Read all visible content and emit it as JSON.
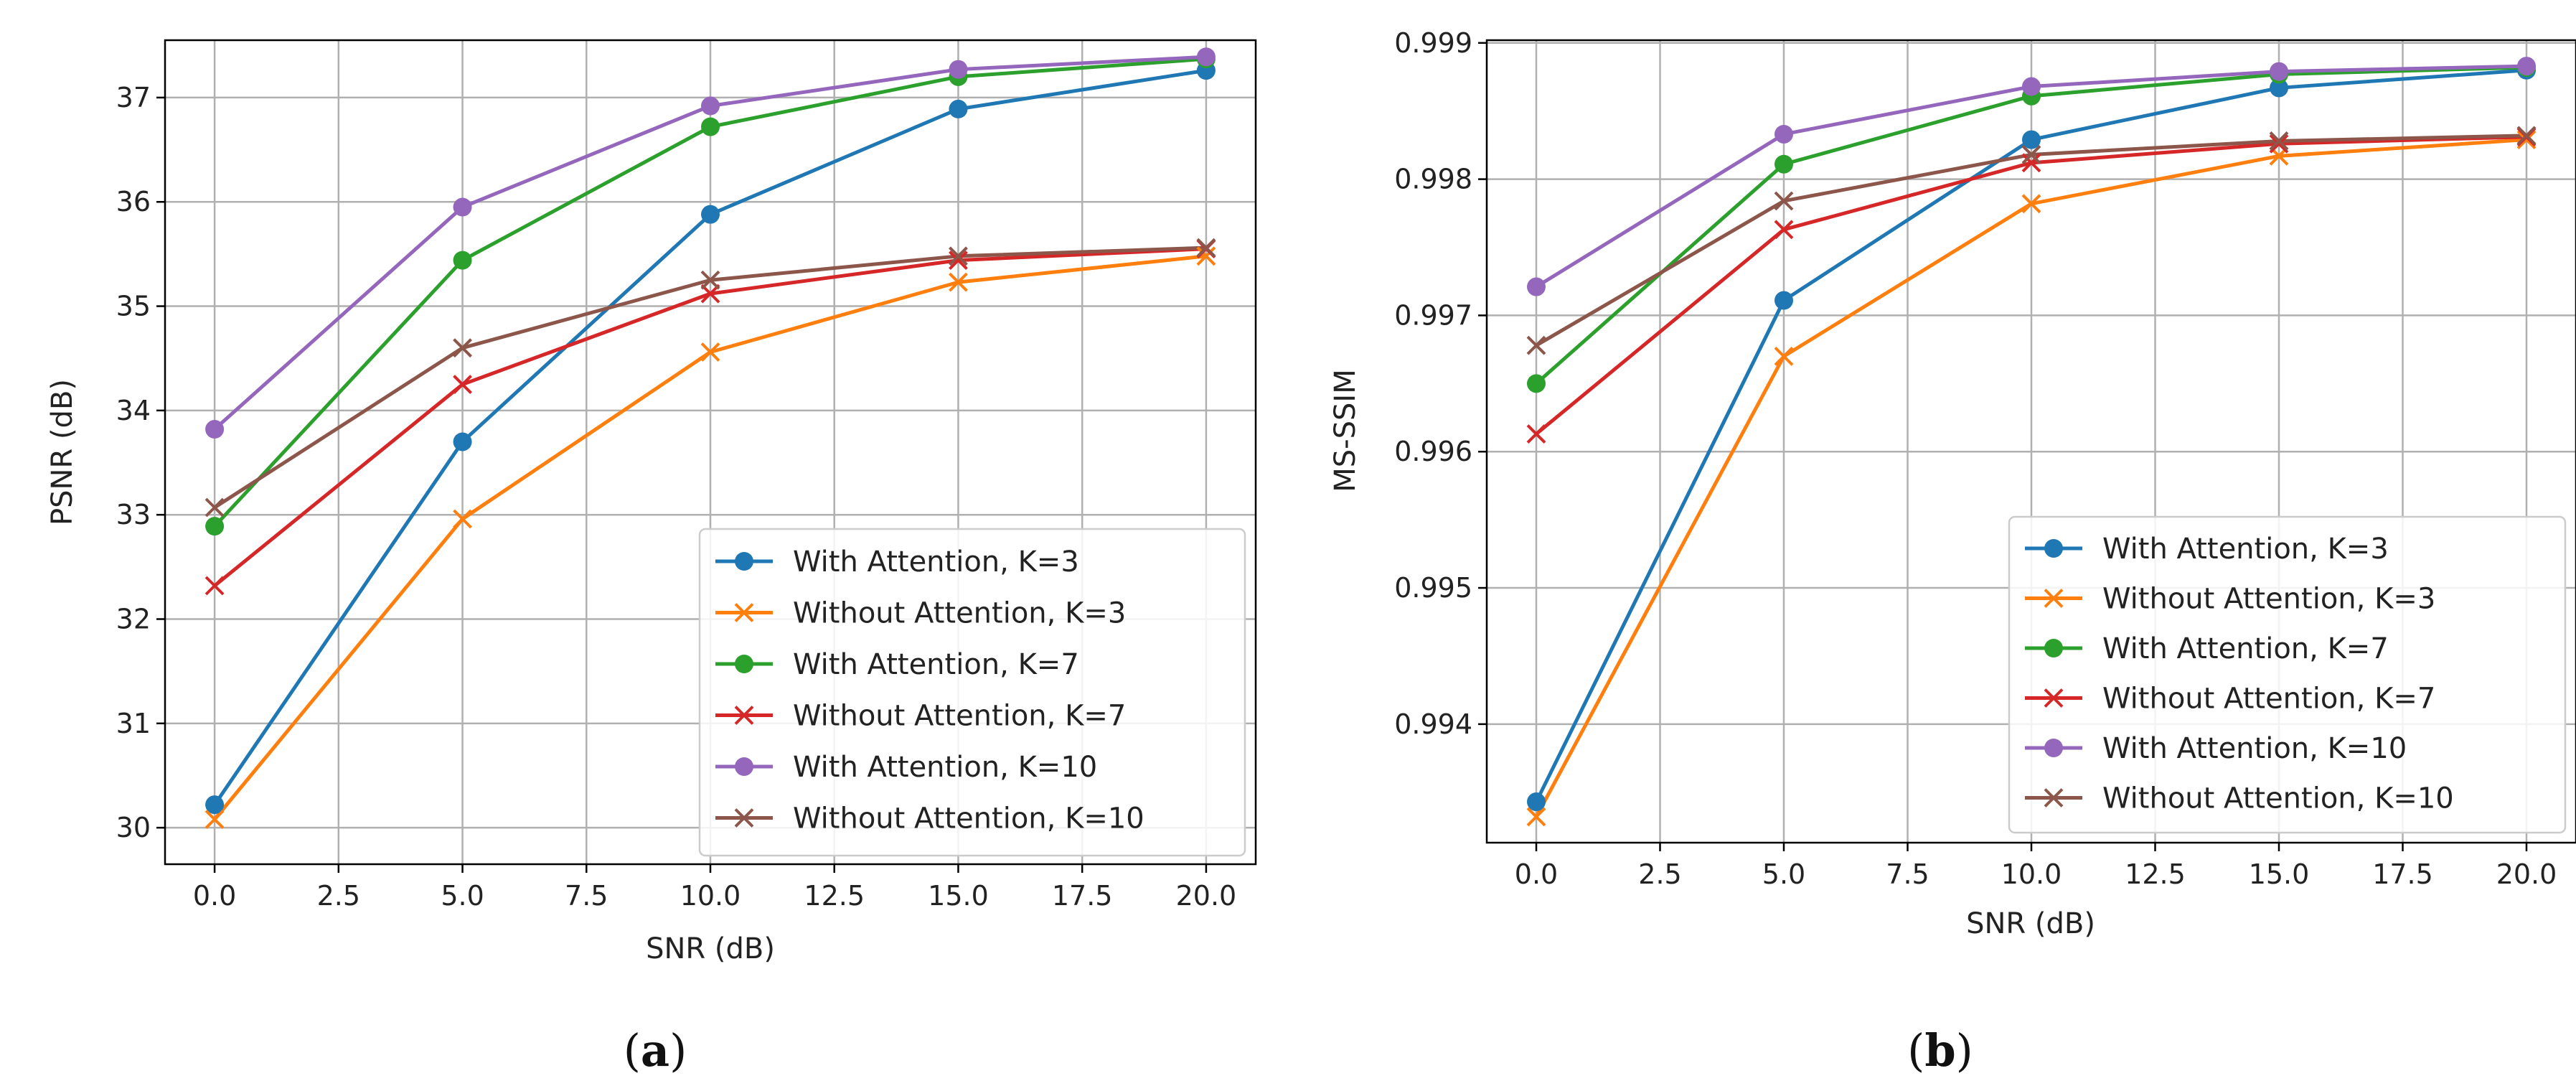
{
  "colors": {
    "blue": "#1f77b4",
    "orange": "#ff7f0e",
    "green": "#2ca02c",
    "red": "#d62728",
    "purple": "#9467bd",
    "brown": "#8c564b",
    "grid": "#b0b0b0"
  },
  "chart_data": [
    {
      "type": "line",
      "panel_label": "a",
      "xlabel": "SNR (dB)",
      "ylabel": "PSNR (dB)",
      "xlim": [
        -1.0,
        21.0
      ],
      "ylim": [
        29.65,
        37.55
      ],
      "grid": true,
      "legend_position": "lower-right",
      "xticks": [
        0.0,
        2.5,
        5.0,
        7.5,
        10.0,
        12.5,
        15.0,
        17.5,
        20.0
      ],
      "xtick_labels": [
        "0.0",
        "2.5",
        "5.0",
        "7.5",
        "10.0",
        "12.5",
        "15.0",
        "17.5",
        "20.0"
      ],
      "yticks": [
        30,
        31,
        32,
        33,
        34,
        35,
        36,
        37
      ],
      "ytick_labels": [
        "30",
        "31",
        "32",
        "33",
        "34",
        "35",
        "36",
        "37"
      ],
      "x": [
        0,
        5,
        10,
        15,
        20
      ],
      "series": [
        {
          "name": "With Attention, K=3",
          "color": "#1f77b4",
          "marker": "circle",
          "values": [
            30.22,
            33.7,
            35.88,
            36.89,
            37.26
          ]
        },
        {
          "name": "Without Attention, K=3",
          "color": "#ff7f0e",
          "marker": "x",
          "values": [
            30.08,
            32.96,
            34.56,
            35.23,
            35.48
          ]
        },
        {
          "name": "With Attention, K=7",
          "color": "#2ca02c",
          "marker": "circle",
          "values": [
            32.89,
            35.44,
            36.72,
            37.2,
            37.37
          ]
        },
        {
          "name": "Without Attention, K=7",
          "color": "#d62728",
          "marker": "x",
          "values": [
            32.32,
            34.25,
            35.12,
            35.44,
            35.55
          ]
        },
        {
          "name": "With Attention, K=10",
          "color": "#9467bd",
          "marker": "circle",
          "values": [
            33.82,
            35.95,
            36.92,
            37.27,
            37.39
          ]
        },
        {
          "name": "Without Attention, K=10",
          "color": "#8c564b",
          "marker": "x",
          "values": [
            33.07,
            34.6,
            35.25,
            35.48,
            35.56
          ]
        }
      ]
    },
    {
      "type": "line",
      "panel_label": "b",
      "xlabel": "SNR (dB)",
      "ylabel": "MS-SSIM",
      "xlim": [
        -1.0,
        21.0
      ],
      "ylim": [
        0.99313,
        0.99902
      ],
      "grid": true,
      "legend_position": "lower-right",
      "xticks": [
        0.0,
        2.5,
        5.0,
        7.5,
        10.0,
        12.5,
        15.0,
        17.5,
        20.0
      ],
      "xtick_labels": [
        "0.0",
        "2.5",
        "5.0",
        "7.5",
        "10.0",
        "12.5",
        "15.0",
        "17.5",
        "20.0"
      ],
      "yticks": [
        0.994,
        0.995,
        0.996,
        0.997,
        0.998,
        0.999
      ],
      "ytick_labels": [
        "0.994",
        "0.995",
        "0.996",
        "0.997",
        "0.998",
        "0.999"
      ],
      "x": [
        0,
        5,
        10,
        15,
        20
      ],
      "series": [
        {
          "name": "With Attention, K=3",
          "color": "#1f77b4",
          "marker": "circle",
          "values": [
            0.99343,
            0.99711,
            0.99829,
            0.99867,
            0.9988
          ]
        },
        {
          "name": "Without Attention, K=3",
          "color": "#ff7f0e",
          "marker": "x",
          "values": [
            0.99332,
            0.9967,
            0.99782,
            0.99817,
            0.99829
          ]
        },
        {
          "name": "With Attention, K=7",
          "color": "#2ca02c",
          "marker": "circle",
          "values": [
            0.9965,
            0.99811,
            0.99861,
            0.99877,
            0.99882
          ]
        },
        {
          "name": "Without Attention, K=7",
          "color": "#d62728",
          "marker": "x",
          "values": [
            0.99613,
            0.99763,
            0.99812,
            0.99826,
            0.99831
          ]
        },
        {
          "name": "With Attention, K=10",
          "color": "#9467bd",
          "marker": "circle",
          "values": [
            0.99721,
            0.99833,
            0.99868,
            0.99879,
            0.99883
          ]
        },
        {
          "name": "Without Attention, K=10",
          "color": "#8c564b",
          "marker": "x",
          "values": [
            0.99678,
            0.99784,
            0.99818,
            0.99828,
            0.99832
          ]
        }
      ]
    }
  ]
}
